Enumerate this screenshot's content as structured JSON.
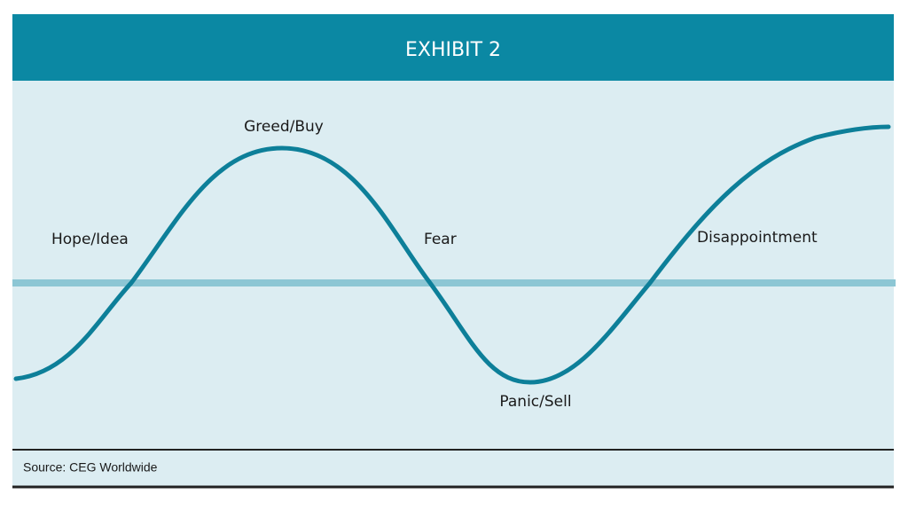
{
  "header": {
    "title": "EXHIBIT 2"
  },
  "labels": [
    "Greed/Buy",
    "Hope/Idea",
    "Fear",
    "Disappointment",
    "Panic/Sell"
  ],
  "source": "Source: CEG Worldwide"
}
